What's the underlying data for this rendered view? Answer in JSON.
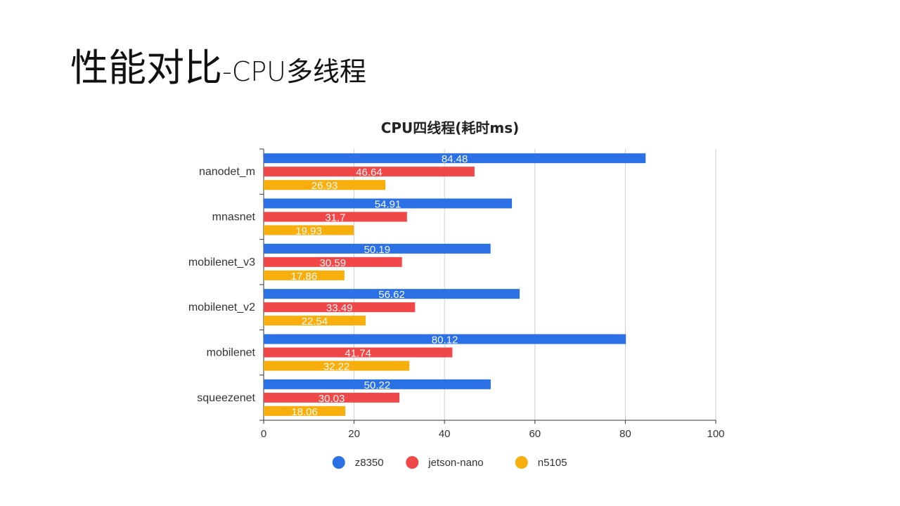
{
  "slide": {
    "title_main": "性能对比",
    "title_sub": "-CPU多线程"
  },
  "colors": {
    "z8350": "#2b70e4",
    "jetson-nano": "#f04848",
    "n5105": "#f8ae0c",
    "grid": "#cccccc",
    "axis": "#333333"
  },
  "chart_data": {
    "type": "bar",
    "orientation": "horizontal",
    "title": "CPU四线程(耗时ms)",
    "categories": [
      "nanodet_m",
      "mnasnet",
      "mobilenet_v3",
      "mobilenet_v2",
      "mobilenet",
      "squeezenet"
    ],
    "series": [
      {
        "name": "z8350",
        "values": [
          84.48,
          54.91,
          50.19,
          56.62,
          80.12,
          50.22
        ]
      },
      {
        "name": "jetson-nano",
        "values": [
          46.64,
          31.7,
          30.59,
          33.49,
          41.74,
          30.03
        ]
      },
      {
        "name": "n5105",
        "values": [
          26.93,
          19.93,
          17.86,
          22.54,
          32.22,
          18.06
        ]
      }
    ],
    "xlim": [
      0,
      100
    ],
    "xticks": [
      0,
      20,
      40,
      60,
      80,
      100
    ],
    "grid": true,
    "legend": "bottom"
  }
}
